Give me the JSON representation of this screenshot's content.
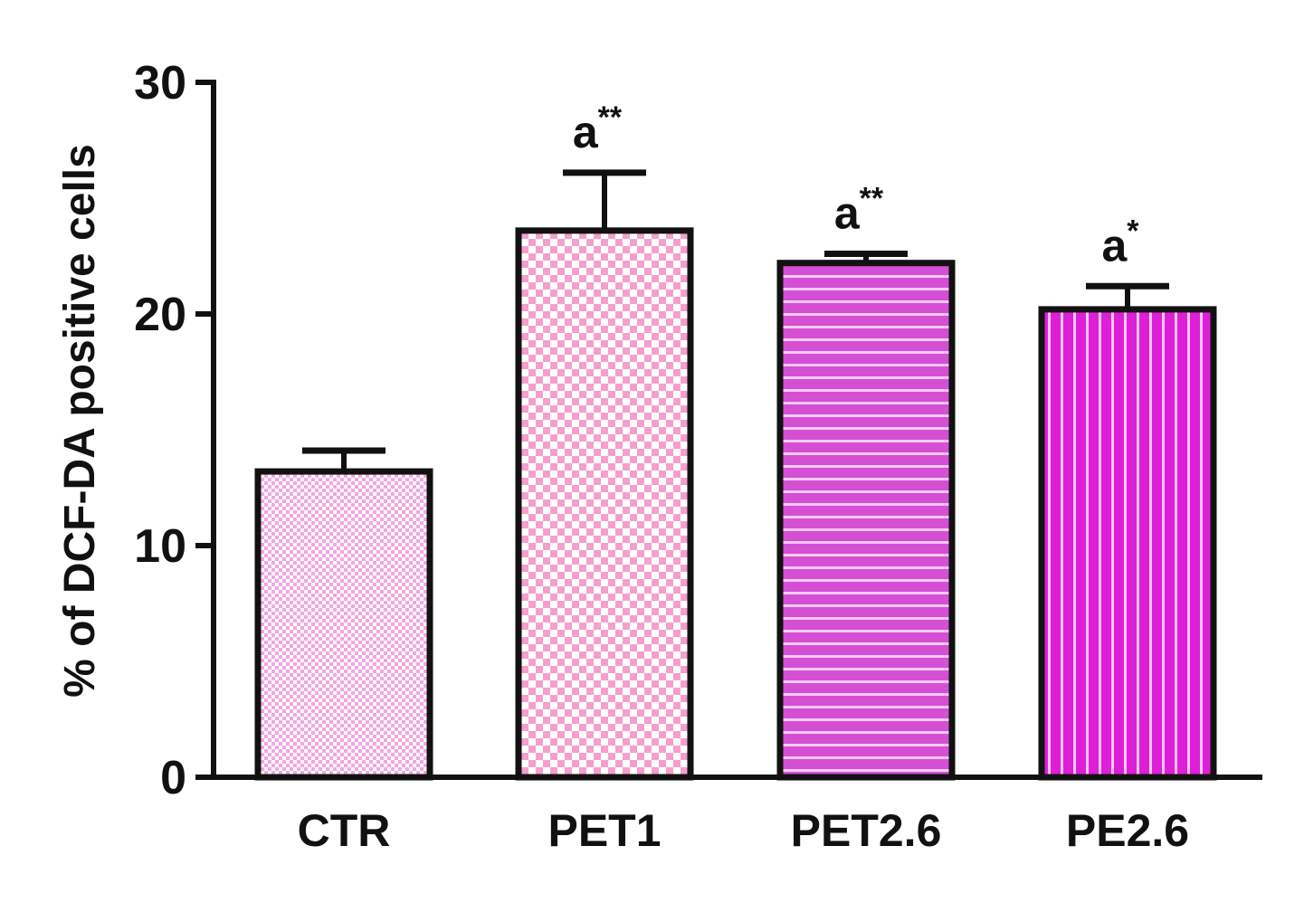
{
  "chart_data": {
    "type": "bar",
    "title": "",
    "xlabel": "",
    "ylabel": "% of DCF-DA positive cells",
    "ylim": [
      0,
      30
    ],
    "yticks": [
      0,
      10,
      20,
      30
    ],
    "grid": false,
    "categories": [
      "CTR",
      "PET1",
      "PET2.6",
      "PE2.6"
    ],
    "values": [
      13.2,
      23.6,
      22.2,
      20.2
    ],
    "errors": [
      0.9,
      2.5,
      0.4,
      1.0
    ],
    "annotations": [
      {
        "category": "PET1",
        "base": "a",
        "stars": "**"
      },
      {
        "category": "PET2.6",
        "base": "a",
        "stars": "**"
      },
      {
        "category": "PE2.6",
        "base": "a",
        "stars": "*"
      }
    ],
    "bar_patterns": [
      "fine-checker",
      "checker",
      "horizontal-stripes",
      "vertical-stripes"
    ],
    "colors": {
      "CTR": "#f2a6df",
      "PET1": "#f59fce",
      "PET2.6": "#d44fd4",
      "PE2.6": "#df1ed8",
      "axis": "#111111"
    }
  }
}
